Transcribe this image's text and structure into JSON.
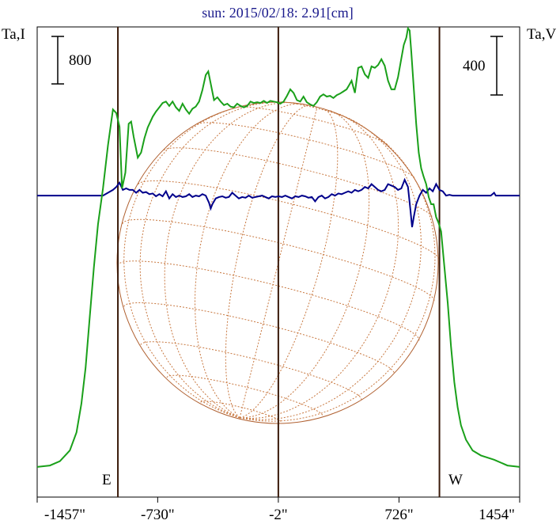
{
  "title": "sun: 2015/02/18: 2.91[cm]",
  "left_axis_label": "Ta,I",
  "right_axis_label": "Ta,V",
  "left_scale_label": "800",
  "right_scale_label": "400",
  "east_label": "E",
  "west_label": "W",
  "colors": {
    "stokes_i": "#1aa01a",
    "stokes_v": "#00008b",
    "limb_lines": "#3a1a0a",
    "disk": "#b06030",
    "grid": "#c87840",
    "title": "#1a1a8c"
  },
  "chart_data": {
    "type": "line",
    "title": "sun: 2015/02/18: 2.91[cm]",
    "x_unit": "arcsec",
    "xlim": [
      -1457,
      1454
    ],
    "x_ticks": [
      {
        "value": -1457,
        "label": "-1457\""
      },
      {
        "value": -730,
        "label": "-730\""
      },
      {
        "value": -2,
        "label": "-2\""
      },
      {
        "value": 726,
        "label": "726\""
      },
      {
        "value": 1454,
        "label": "1454\""
      }
    ],
    "vertical_lines": [
      -970,
      -2,
      970
    ],
    "left_axis": {
      "label": "Ta,I",
      "scale_bar": 800,
      "ylim": [
        -4200,
        2350
      ]
    },
    "right_axis": {
      "label": "Ta,V",
      "scale_bar": 400,
      "ylim": [
        -2100,
        1175
      ]
    },
    "solar_disk": {
      "center_x": -2,
      "radius_arcsec": 970
    },
    "series": [
      {
        "name": "I",
        "axis": "left",
        "points": [
          [
            -1457,
            -3780
          ],
          [
            -1380,
            -3760
          ],
          [
            -1320,
            -3700
          ],
          [
            -1260,
            -3550
          ],
          [
            -1220,
            -3300
          ],
          [
            -1190,
            -2900
          ],
          [
            -1165,
            -2400
          ],
          [
            -1140,
            -1700
          ],
          [
            -1115,
            -1000
          ],
          [
            -1090,
            -400
          ],
          [
            -1060,
            100
          ],
          [
            -1030,
            700
          ],
          [
            -1000,
            1200
          ],
          [
            -980,
            1150
          ],
          [
            -960,
            960
          ],
          [
            -945,
            100
          ],
          [
            -925,
            320
          ],
          [
            -905,
            1000
          ],
          [
            -890,
            1030
          ],
          [
            -875,
            820
          ],
          [
            -850,
            530
          ],
          [
            -830,
            600
          ],
          [
            -810,
            800
          ],
          [
            -790,
            950
          ],
          [
            -760,
            1100
          ],
          [
            -740,
            1170
          ],
          [
            -720,
            1230
          ],
          [
            -700,
            1290
          ],
          [
            -680,
            1310
          ],
          [
            -660,
            1250
          ],
          [
            -640,
            1310
          ],
          [
            -620,
            1230
          ],
          [
            -600,
            1180
          ],
          [
            -580,
            1280
          ],
          [
            -560,
            1200
          ],
          [
            -540,
            1140
          ],
          [
            -520,
            1210
          ],
          [
            -500,
            1240
          ],
          [
            -480,
            1310
          ],
          [
            -460,
            1470
          ],
          [
            -440,
            1680
          ],
          [
            -425,
            1730
          ],
          [
            -410,
            1560
          ],
          [
            -390,
            1330
          ],
          [
            -370,
            1370
          ],
          [
            -350,
            1310
          ],
          [
            -330,
            1260
          ],
          [
            -310,
            1280
          ],
          [
            -290,
            1240
          ],
          [
            -270,
            1230
          ],
          [
            -250,
            1280
          ],
          [
            -230,
            1250
          ],
          [
            -210,
            1230
          ],
          [
            -190,
            1250
          ],
          [
            -170,
            1310
          ],
          [
            -150,
            1290
          ],
          [
            -130,
            1300
          ],
          [
            -110,
            1290
          ],
          [
            -90,
            1320
          ],
          [
            -70,
            1290
          ],
          [
            -50,
            1320
          ],
          [
            -30,
            1310
          ],
          [
            -10,
            1300
          ],
          [
            10,
            1280
          ],
          [
            30,
            1310
          ],
          [
            50,
            1390
          ],
          [
            70,
            1480
          ],
          [
            90,
            1430
          ],
          [
            110,
            1330
          ],
          [
            130,
            1310
          ],
          [
            150,
            1380
          ],
          [
            170,
            1300
          ],
          [
            190,
            1270
          ],
          [
            210,
            1250
          ],
          [
            230,
            1300
          ],
          [
            250,
            1380
          ],
          [
            270,
            1410
          ],
          [
            290,
            1380
          ],
          [
            310,
            1390
          ],
          [
            330,
            1360
          ],
          [
            350,
            1400
          ],
          [
            370,
            1420
          ],
          [
            390,
            1450
          ],
          [
            410,
            1480
          ],
          [
            425,
            1540
          ],
          [
            440,
            1600
          ],
          [
            460,
            1430
          ],
          [
            480,
            1780
          ],
          [
            500,
            1800
          ],
          [
            520,
            1690
          ],
          [
            540,
            1640
          ],
          [
            560,
            1800
          ],
          [
            580,
            1780
          ],
          [
            600,
            1820
          ],
          [
            620,
            1900
          ],
          [
            640,
            1810
          ],
          [
            660,
            1600
          ],
          [
            680,
            1480
          ],
          [
            700,
            1480
          ],
          [
            720,
            1650
          ],
          [
            740,
            1910
          ],
          [
            755,
            2100
          ],
          [
            770,
            2200
          ],
          [
            780,
            2330
          ],
          [
            790,
            2300
          ],
          [
            800,
            2000
          ],
          [
            815,
            1500
          ],
          [
            830,
            1000
          ],
          [
            845,
            600
          ],
          [
            860,
            380
          ],
          [
            875,
            260
          ],
          [
            890,
            160
          ],
          [
            905,
            -20
          ],
          [
            920,
            -120
          ],
          [
            935,
            -120
          ],
          [
            950,
            -300
          ],
          [
            965,
            -380
          ],
          [
            980,
            -500
          ],
          [
            1000,
            -1000
          ],
          [
            1020,
            -1500
          ],
          [
            1040,
            -2100
          ],
          [
            1060,
            -2600
          ],
          [
            1080,
            -2950
          ],
          [
            1100,
            -3200
          ],
          [
            1130,
            -3400
          ],
          [
            1170,
            -3550
          ],
          [
            1220,
            -3620
          ],
          [
            1300,
            -3680
          ],
          [
            1380,
            -3760
          ],
          [
            1454,
            -3780
          ]
        ]
      },
      {
        "name": "V",
        "axis": "right",
        "points": [
          [
            -1457,
            0
          ],
          [
            -1100,
            0
          ],
          [
            -1060,
            0
          ],
          [
            -1030,
            20
          ],
          [
            -1000,
            40
          ],
          [
            -980,
            60
          ],
          [
            -960,
            90
          ],
          [
            -940,
            40
          ],
          [
            -920,
            50
          ],
          [
            -900,
            40
          ],
          [
            -880,
            40
          ],
          [
            -860,
            20
          ],
          [
            -840,
            40
          ],
          [
            -820,
            20
          ],
          [
            -800,
            25
          ],
          [
            -780,
            10
          ],
          [
            -760,
            15
          ],
          [
            -740,
            -5
          ],
          [
            -720,
            10
          ],
          [
            -700,
            -5
          ],
          [
            -680,
            30
          ],
          [
            -660,
            -20
          ],
          [
            -640,
            10
          ],
          [
            -620,
            -10
          ],
          [
            -600,
            0
          ],
          [
            -580,
            -10
          ],
          [
            -560,
            -5
          ],
          [
            -540,
            10
          ],
          [
            -520,
            -10
          ],
          [
            -500,
            0
          ],
          [
            -480,
            -5
          ],
          [
            -460,
            10
          ],
          [
            -440,
            0
          ],
          [
            -420,
            -50
          ],
          [
            -410,
            -90
          ],
          [
            -400,
            -60
          ],
          [
            -380,
            -20
          ],
          [
            -360,
            -10
          ],
          [
            -340,
            -5
          ],
          [
            -320,
            -15
          ],
          [
            -300,
            -10
          ],
          [
            -280,
            20
          ],
          [
            -260,
            0
          ],
          [
            -240,
            -20
          ],
          [
            -220,
            -10
          ],
          [
            -200,
            -15
          ],
          [
            -180,
            0
          ],
          [
            -160,
            -15
          ],
          [
            -140,
            -10
          ],
          [
            -120,
            -5
          ],
          [
            -100,
            0
          ],
          [
            -80,
            -10
          ],
          [
            -60,
            -20
          ],
          [
            -40,
            -5
          ],
          [
            -20,
            -10
          ],
          [
            0,
            -5
          ],
          [
            20,
            -10
          ],
          [
            40,
            0
          ],
          [
            60,
            -10
          ],
          [
            80,
            -20
          ],
          [
            100,
            -5
          ],
          [
            120,
            -10
          ],
          [
            140,
            0
          ],
          [
            160,
            -5
          ],
          [
            180,
            -15
          ],
          [
            200,
            -10
          ],
          [
            220,
            -40
          ],
          [
            240,
            -10
          ],
          [
            260,
            0
          ],
          [
            280,
            -20
          ],
          [
            300,
            -10
          ],
          [
            320,
            10
          ],
          [
            340,
            0
          ],
          [
            360,
            15
          ],
          [
            380,
            10
          ],
          [
            400,
            20
          ],
          [
            420,
            30
          ],
          [
            440,
            20
          ],
          [
            460,
            40
          ],
          [
            480,
            30
          ],
          [
            500,
            40
          ],
          [
            520,
            60
          ],
          [
            540,
            50
          ],
          [
            560,
            80
          ],
          [
            580,
            60
          ],
          [
            600,
            40
          ],
          [
            620,
            30
          ],
          [
            640,
            40
          ],
          [
            660,
            80
          ],
          [
            680,
            70
          ],
          [
            700,
            60
          ],
          [
            720,
            40
          ],
          [
            740,
            50
          ],
          [
            760,
            110
          ],
          [
            780,
            60
          ],
          [
            795,
            -100
          ],
          [
            805,
            -220
          ],
          [
            815,
            -150
          ],
          [
            830,
            -60
          ],
          [
            850,
            0
          ],
          [
            870,
            40
          ],
          [
            890,
            20
          ],
          [
            910,
            50
          ],
          [
            930,
            30
          ],
          [
            950,
            80
          ],
          [
            970,
            40
          ],
          [
            990,
            30
          ],
          [
            1010,
            0
          ],
          [
            1030,
            5
          ],
          [
            1050,
            0
          ],
          [
            1150,
            0
          ],
          [
            1280,
            0
          ],
          [
            1300,
            20
          ],
          [
            1310,
            0
          ],
          [
            1454,
            0
          ]
        ]
      }
    ]
  }
}
